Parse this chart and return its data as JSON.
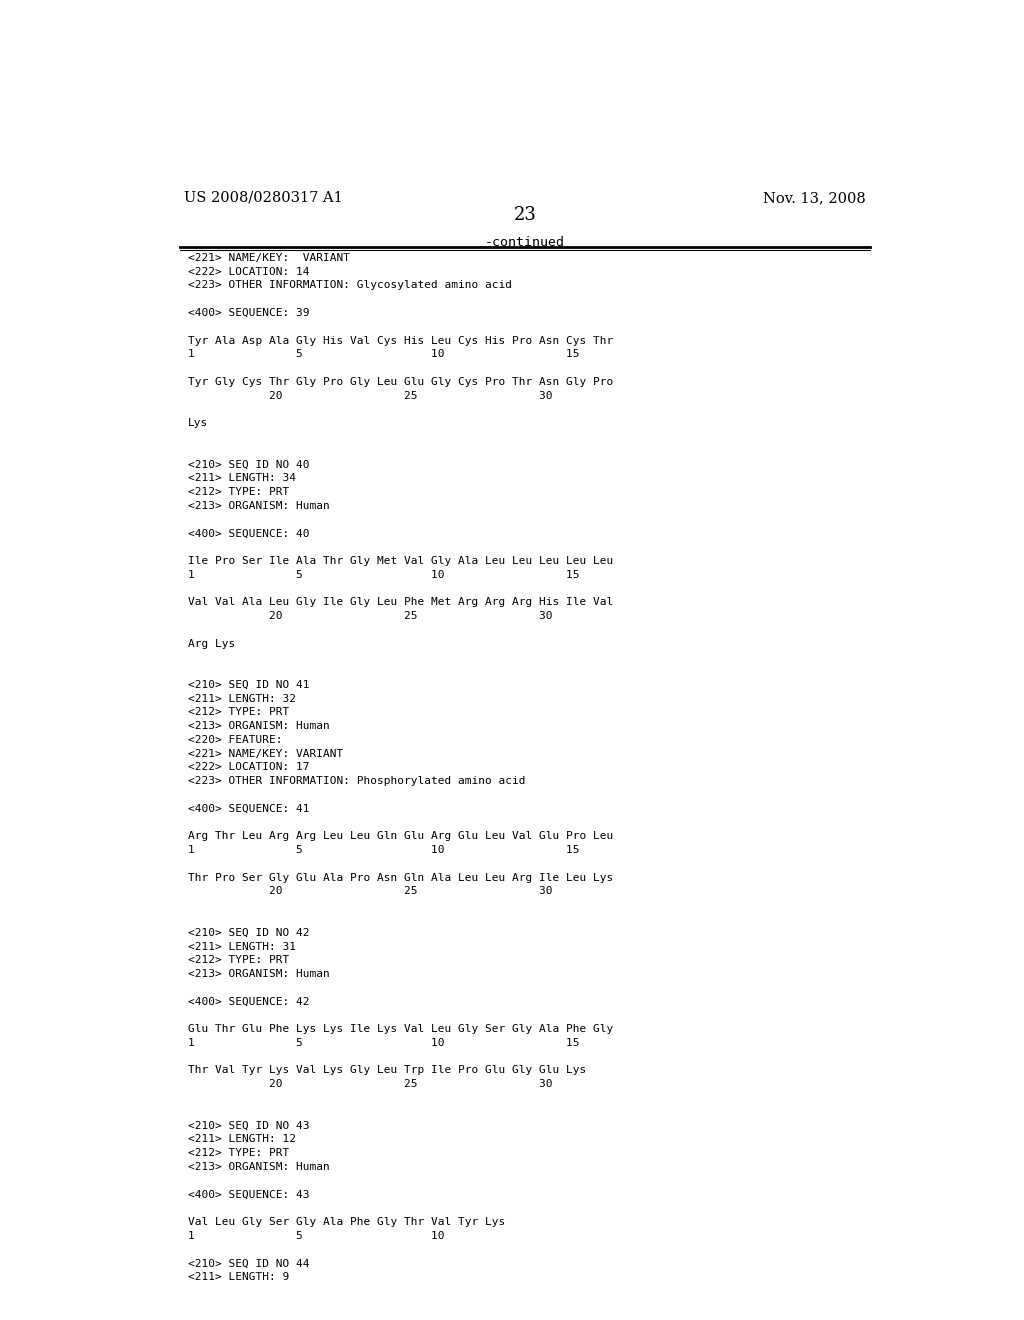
{
  "bg_color": "#ffffff",
  "header_left": "US 2008/0280317 A1",
  "header_right": "Nov. 13, 2008",
  "page_number": "23",
  "continued_label": "-continued",
  "content": [
    {
      "type": "meta",
      "text": "<221> NAME/KEY:  VARIANT"
    },
    {
      "type": "meta",
      "text": "<222> LOCATION: 14"
    },
    {
      "type": "meta",
      "text": "<223> OTHER INFORMATION: Glycosylated amino acid"
    },
    {
      "type": "blank"
    },
    {
      "type": "meta",
      "text": "<400> SEQUENCE: 39"
    },
    {
      "type": "blank"
    },
    {
      "type": "seq",
      "text": "Tyr Ala Asp Ala Gly His Val Cys His Leu Cys His Pro Asn Cys Thr"
    },
    {
      "type": "num",
      "text": "1               5                   10                  15"
    },
    {
      "type": "blank"
    },
    {
      "type": "seq",
      "text": "Tyr Gly Cys Thr Gly Pro Gly Leu Glu Gly Cys Pro Thr Asn Gly Pro"
    },
    {
      "type": "num",
      "text": "            20                  25                  30"
    },
    {
      "type": "blank"
    },
    {
      "type": "seq",
      "text": "Lys"
    },
    {
      "type": "blank"
    },
    {
      "type": "blank"
    },
    {
      "type": "meta",
      "text": "<210> SEQ ID NO 40"
    },
    {
      "type": "meta",
      "text": "<211> LENGTH: 34"
    },
    {
      "type": "meta",
      "text": "<212> TYPE: PRT"
    },
    {
      "type": "meta",
      "text": "<213> ORGANISM: Human"
    },
    {
      "type": "blank"
    },
    {
      "type": "meta",
      "text": "<400> SEQUENCE: 40"
    },
    {
      "type": "blank"
    },
    {
      "type": "seq",
      "text": "Ile Pro Ser Ile Ala Thr Gly Met Val Gly Ala Leu Leu Leu Leu Leu"
    },
    {
      "type": "num",
      "text": "1               5                   10                  15"
    },
    {
      "type": "blank"
    },
    {
      "type": "seq",
      "text": "Val Val Ala Leu Gly Ile Gly Leu Phe Met Arg Arg Arg His Ile Val"
    },
    {
      "type": "num",
      "text": "            20                  25                  30"
    },
    {
      "type": "blank"
    },
    {
      "type": "seq",
      "text": "Arg Lys"
    },
    {
      "type": "blank"
    },
    {
      "type": "blank"
    },
    {
      "type": "meta",
      "text": "<210> SEQ ID NO 41"
    },
    {
      "type": "meta",
      "text": "<211> LENGTH: 32"
    },
    {
      "type": "meta",
      "text": "<212> TYPE: PRT"
    },
    {
      "type": "meta",
      "text": "<213> ORGANISM: Human"
    },
    {
      "type": "meta",
      "text": "<220> FEATURE:"
    },
    {
      "type": "meta",
      "text": "<221> NAME/KEY: VARIANT"
    },
    {
      "type": "meta",
      "text": "<222> LOCATION: 17"
    },
    {
      "type": "meta",
      "text": "<223> OTHER INFORMATION: Phosphorylated amino acid"
    },
    {
      "type": "blank"
    },
    {
      "type": "meta",
      "text": "<400> SEQUENCE: 41"
    },
    {
      "type": "blank"
    },
    {
      "type": "seq",
      "text": "Arg Thr Leu Arg Arg Leu Leu Gln Glu Arg Glu Leu Val Glu Pro Leu"
    },
    {
      "type": "num",
      "text": "1               5                   10                  15"
    },
    {
      "type": "blank"
    },
    {
      "type": "seq",
      "text": "Thr Pro Ser Gly Glu Ala Pro Asn Gln Ala Leu Leu Arg Ile Leu Lys"
    },
    {
      "type": "num",
      "text": "            20                  25                  30"
    },
    {
      "type": "blank"
    },
    {
      "type": "blank"
    },
    {
      "type": "meta",
      "text": "<210> SEQ ID NO 42"
    },
    {
      "type": "meta",
      "text": "<211> LENGTH: 31"
    },
    {
      "type": "meta",
      "text": "<212> TYPE: PRT"
    },
    {
      "type": "meta",
      "text": "<213> ORGANISM: Human"
    },
    {
      "type": "blank"
    },
    {
      "type": "meta",
      "text": "<400> SEQUENCE: 42"
    },
    {
      "type": "blank"
    },
    {
      "type": "seq",
      "text": "Glu Thr Glu Phe Lys Lys Ile Lys Val Leu Gly Ser Gly Ala Phe Gly"
    },
    {
      "type": "num",
      "text": "1               5                   10                  15"
    },
    {
      "type": "blank"
    },
    {
      "type": "seq",
      "text": "Thr Val Tyr Lys Val Lys Gly Leu Trp Ile Pro Glu Gly Glu Lys"
    },
    {
      "type": "num",
      "text": "            20                  25                  30"
    },
    {
      "type": "blank"
    },
    {
      "type": "blank"
    },
    {
      "type": "meta",
      "text": "<210> SEQ ID NO 43"
    },
    {
      "type": "meta",
      "text": "<211> LENGTH: 12"
    },
    {
      "type": "meta",
      "text": "<212> TYPE: PRT"
    },
    {
      "type": "meta",
      "text": "<213> ORGANISM: Human"
    },
    {
      "type": "blank"
    },
    {
      "type": "meta",
      "text": "<400> SEQUENCE: 43"
    },
    {
      "type": "blank"
    },
    {
      "type": "seq",
      "text": "Val Leu Gly Ser Gly Ala Phe Gly Thr Val Tyr Lys"
    },
    {
      "type": "num",
      "text": "1               5                   10"
    },
    {
      "type": "blank"
    },
    {
      "type": "meta",
      "text": "<210> SEQ ID NO 44"
    },
    {
      "type": "meta",
      "text": "<211> LENGTH: 9"
    }
  ]
}
